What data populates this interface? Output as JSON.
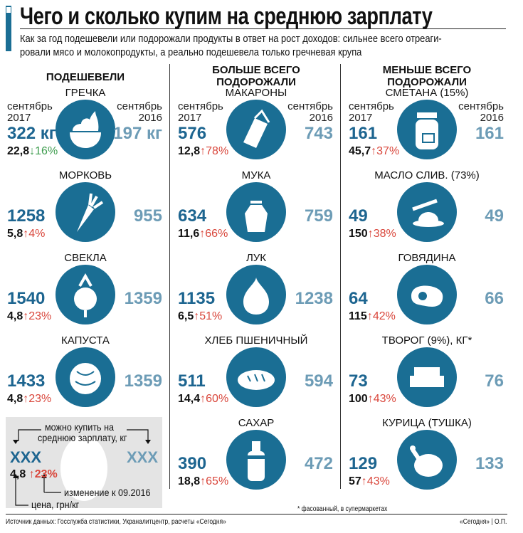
{
  "title": "Чего и сколько купим на среднюю зарплату",
  "subtitle": [
    "Как за год подешевели или подорожали продукты в ответ на рост доходов: сильнее всего отреаги-",
    "ровали мясо и молокопродукты, а реально подешевела только гречневая крупа"
  ],
  "labels": {
    "sep": "сентябрь",
    "y2017": "2017",
    "y2016": "2016"
  },
  "colors": {
    "accent": "#1a6e94",
    "value2017": "#1d6590",
    "value2016": "#6d9cb6",
    "up": "#d9463b",
    "down": "#3f9d4f"
  },
  "columns": [
    {
      "heading": [
        "ПОДЕШЕВЕЛИ"
      ],
      "items": [
        {
          "name": "ГРЕЧКА",
          "icon": "bowl-icon",
          "v2017": "322 кг",
          "v2016": "197 кг",
          "price": "22,8",
          "dir": "down",
          "change": "16%",
          "dates": true
        },
        {
          "name": "МОРКОВЬ",
          "icon": "carrot-icon",
          "v2017": "1258",
          "v2016": "955",
          "price": "5,8",
          "dir": "up",
          "change": "4%"
        },
        {
          "name": "СВЕКЛА",
          "icon": "beet-icon",
          "v2017": "1540",
          "v2016": "1359",
          "price": "4,8",
          "dir": "up",
          "change": "23%"
        },
        {
          "name": "КАПУСТА",
          "icon": "cabbage-icon",
          "v2017": "1433",
          "v2016": "1359",
          "price": "4,8",
          "dir": "up",
          "change": "23%"
        }
      ]
    },
    {
      "heading": [
        "БОЛЬШЕ ВСЕГО",
        "ПОДОРОЖАЛИ"
      ],
      "items": [
        {
          "name": "МАКАРОНЫ",
          "icon": "pasta-icon",
          "v2017": "576",
          "v2016": "743",
          "price": "12,8",
          "dir": "up",
          "change": "78%",
          "dates": true
        },
        {
          "name": "МУКА",
          "icon": "flour-sack-icon",
          "v2017": "634",
          "v2016": "759",
          "price": "11,6",
          "dir": "up",
          "change": "66%"
        },
        {
          "name": "ЛУК",
          "icon": "garlic-onion-icon",
          "v2017": "1135",
          "v2016": "1238",
          "price": "6,5",
          "dir": "up",
          "change": "51%"
        },
        {
          "name": "ХЛЕБ ПШЕНИЧНЫЙ",
          "icon": "bread-icon",
          "v2017": "511",
          "v2016": "594",
          "price": "14,4",
          "dir": "up",
          "change": "60%"
        },
        {
          "name": "САХАР",
          "icon": "sugar-bottle-icon",
          "v2017": "390",
          "v2016": "472",
          "price": "18,8",
          "dir": "up",
          "change": "65%"
        }
      ]
    },
    {
      "heading": [
        "МЕНЬШЕ ВСЕГО",
        "ПОДОРОЖАЛИ"
      ],
      "items": [
        {
          "name": "СМЕТАНА (15%)",
          "icon": "jar-icon",
          "v2017": "161",
          "v2016": "161",
          "price": "45,7",
          "dir": "up",
          "change": "37%",
          "dates": true
        },
        {
          "name": "МАСЛО СЛИВ. (73%)",
          "icon": "butter-icon",
          "v2017": "49",
          "v2016": "49",
          "price": "150",
          "dir": "up",
          "change": "38%"
        },
        {
          "name": "ГОВЯДИНА",
          "icon": "steak-icon",
          "v2017": "64",
          "v2016": "66",
          "price": "115",
          "dir": "up",
          "change": "42%"
        },
        {
          "name": "ТВОРОГ (9%), КГ*",
          "icon": "cottage-cheese-icon",
          "v2017": "73",
          "v2016": "76",
          "price": "100",
          "dir": "up",
          "change": "43%"
        },
        {
          "name": "КУРИЦА (ТУШКА)",
          "icon": "chicken-icon",
          "v2017": "129",
          "v2016": "133",
          "price": "57",
          "dir": "up",
          "change": "43%"
        }
      ]
    }
  ],
  "legend": {
    "caption": [
      "можно купить на",
      "среднюю зарплату, кг"
    ],
    "left": "XXX",
    "right": "XXX",
    "price": "4,8",
    "change": "23%",
    "change_label": "изменение к 09.2016",
    "price_label": "цена, грн/кг"
  },
  "footnote": "* фасованный, в супермаркетах",
  "source": "Источник данных: Госслужба статистики, Украналитцентр, расчеты «Сегодня»",
  "credit": "«Сегодня» | О.П."
}
